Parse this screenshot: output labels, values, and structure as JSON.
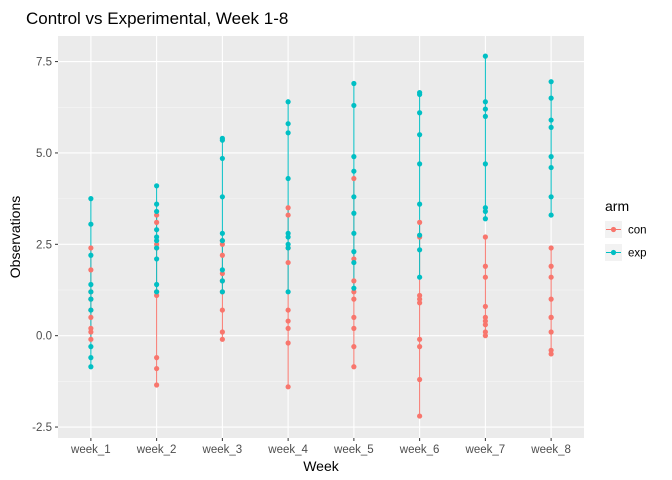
{
  "chart_data": {
    "type": "scatter",
    "title": "Control vs Experimental, Week 1-8",
    "xlabel": "Week",
    "ylabel": "Observations",
    "categories": [
      "week_1",
      "week_2",
      "week_3",
      "week_4",
      "week_5",
      "week_6",
      "week_7",
      "week_8"
    ],
    "ylim": [
      -2.8,
      8.2
    ],
    "yticks": [
      -2.5,
      0.0,
      2.5,
      5.0,
      7.5
    ],
    "ytick_labels": [
      "-2.5",
      "0.0",
      "2.5",
      "5.0",
      "7.5"
    ],
    "grid": true,
    "connect_points_vertically": true,
    "legend": {
      "title": "arm",
      "position": "right"
    },
    "series": [
      {
        "name": "con",
        "color": "#F8766D",
        "values": [
          [
            2.4,
            1.8,
            1.2,
            1.0,
            0.5,
            0.2,
            0.1,
            -0.1,
            0.7
          ],
          [
            3.3,
            2.5,
            2.4,
            1.2,
            1.1,
            3.1,
            -0.6,
            -0.9,
            -1.35
          ],
          [
            2.6,
            2.2,
            1.5,
            1.2,
            0.7,
            0.1,
            -0.1,
            1.7,
            2.5
          ],
          [
            3.5,
            3.3,
            2.4,
            2.0,
            0.7,
            0.4,
            0.2,
            -0.2,
            -1.4
          ],
          [
            4.3,
            2.1,
            1.5,
            1.2,
            1.0,
            0.5,
            0.2,
            -0.3,
            -0.85
          ],
          [
            3.1,
            2.7,
            1.1,
            0.9,
            1.0,
            -0.1,
            -0.3,
            -1.2,
            -2.2
          ],
          [
            2.7,
            1.9,
            1.6,
            0.8,
            0.5,
            0.3,
            0.1,
            0.0,
            0.4
          ],
          [
            2.4,
            1.9,
            1.6,
            1.0,
            0.5,
            0.1,
            -0.4,
            -0.5,
            0.5
          ]
        ]
      },
      {
        "name": "exp",
        "color": "#00BFC4",
        "values": [
          [
            3.75,
            3.05,
            2.2,
            1.4,
            1.2,
            1.0,
            0.7,
            -0.3,
            -0.6,
            -0.85
          ],
          [
            4.1,
            3.6,
            3.4,
            2.9,
            2.7,
            2.6,
            2.4,
            2.1,
            1.4,
            1.2
          ],
          [
            5.4,
            5.35,
            4.85,
            3.8,
            2.8,
            2.6,
            1.8,
            1.5,
            1.2
          ],
          [
            6.4,
            5.8,
            5.55,
            4.3,
            2.8,
            2.7,
            2.5,
            2.4,
            1.2
          ],
          [
            6.9,
            6.3,
            4.9,
            4.5,
            3.8,
            3.35,
            2.8,
            2.3,
            2.0,
            1.3
          ],
          [
            6.65,
            6.6,
            6.1,
            5.5,
            4.7,
            3.6,
            2.75,
            2.35,
            1.6
          ],
          [
            7.65,
            6.4,
            6.2,
            6.0,
            4.7,
            3.5,
            3.4,
            3.2
          ],
          [
            6.95,
            6.5,
            5.9,
            5.7,
            4.9,
            4.6,
            3.8,
            3.3
          ]
        ]
      }
    ]
  }
}
